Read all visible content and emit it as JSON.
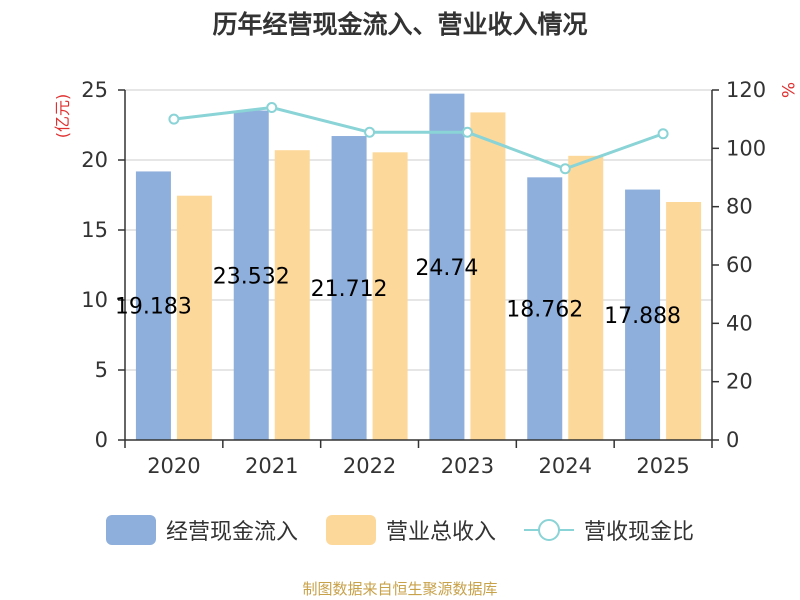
{
  "chart_data": {
    "type": "bar",
    "title": "历年经营现金流入、营业收入情况",
    "categories": [
      "2020",
      "2021",
      "2022",
      "2023",
      "2024",
      "2025"
    ],
    "series": [
      {
        "name": "经营现金流入",
        "kind": "bar",
        "axis": "left",
        "values": [
          19.183,
          23.532,
          21.712,
          24.74,
          18.762,
          17.888
        ],
        "labels": [
          "19.183",
          "23.532",
          "21.712",
          "24.74",
          "18.762",
          "17.888"
        ]
      },
      {
        "name": "营业总收入",
        "kind": "bar",
        "axis": "left",
        "values": [
          17.45,
          20.7,
          20.55,
          23.4,
          20.3,
          17.0
        ]
      },
      {
        "name": "营收现金比",
        "kind": "line",
        "axis": "right",
        "values": [
          110,
          114,
          105.5,
          105.5,
          93,
          105
        ]
      }
    ],
    "ylabel": "(亿元)",
    "y2label": "%",
    "ylim": [
      0,
      25
    ],
    "yticks": [
      0,
      5,
      10,
      15,
      20,
      25
    ],
    "y2lim": [
      0,
      120
    ],
    "y2ticks": [
      0,
      20,
      40,
      60,
      80,
      100,
      120
    ],
    "grid": true,
    "legend_position": "bottom",
    "colors": {
      "bar1": "#8eaedb",
      "bar2": "#fdd89b",
      "line": "#8ad3d6",
      "title": "#333333",
      "axis": "#333333",
      "grid": "#cccccc",
      "ylabel": "#e03030"
    }
  },
  "legend": {
    "items": [
      {
        "label": "经营现金流入",
        "type": "bar",
        "color": "#8eaedb"
      },
      {
        "label": "营业总收入",
        "type": "bar",
        "color": "#fdd89b"
      },
      {
        "label": "营收现金比",
        "type": "line",
        "color": "#8ad3d6"
      }
    ]
  },
  "source": "制图数据来自恒生聚源数据库"
}
